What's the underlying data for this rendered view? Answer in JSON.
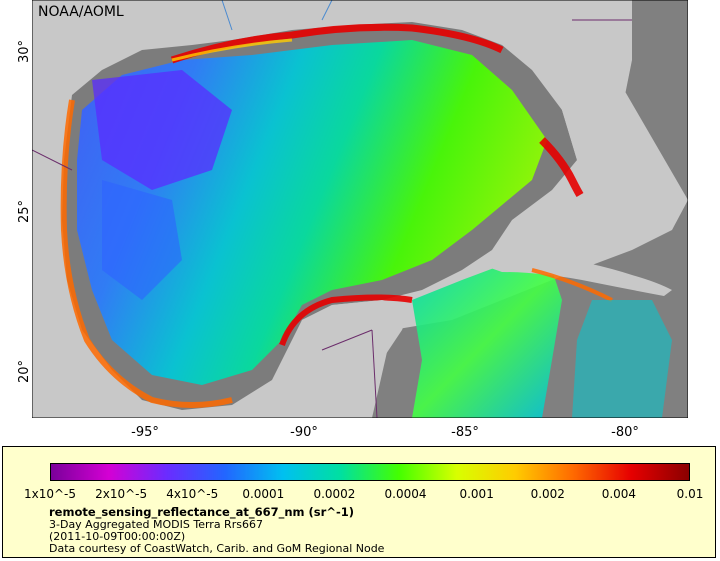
{
  "credit": "NOAA/AOML",
  "y_ticks": [
    "30°",
    "25°",
    "20°"
  ],
  "x_ticks": [
    "-95°",
    "-90°",
    "-85°",
    "-80°"
  ],
  "colorbar": {
    "labels": [
      "1x10^-5",
      "2x10^-5",
      "4x10^-5",
      "0.0001",
      "0.0002",
      "0.0004",
      "0.001",
      "0.002",
      "0.004",
      "0.01"
    ],
    "colors": [
      "#7a009a",
      "#d400d4",
      "#6a2cff",
      "#2266ff",
      "#00c0f0",
      "#00e0a0",
      "#44ff00",
      "#d8ff00",
      "#ffcc00",
      "#ff6a00",
      "#e60000",
      "#8b0000"
    ]
  },
  "info": {
    "variable": "remote_sensing_reflectance_at_667_nm (sr^-1)",
    "dataset": "3-Day Aggregated MODIS Terra Rrs667",
    "time": "(2011-10-09T00:00:00Z)",
    "courtesy": "Data courtesy of CoastWatch, Carib. and GoM Regional Node"
  },
  "colors": {
    "land": "#c8c8c8",
    "no_data": "#808080",
    "legend_bg": "#ffffcc"
  }
}
